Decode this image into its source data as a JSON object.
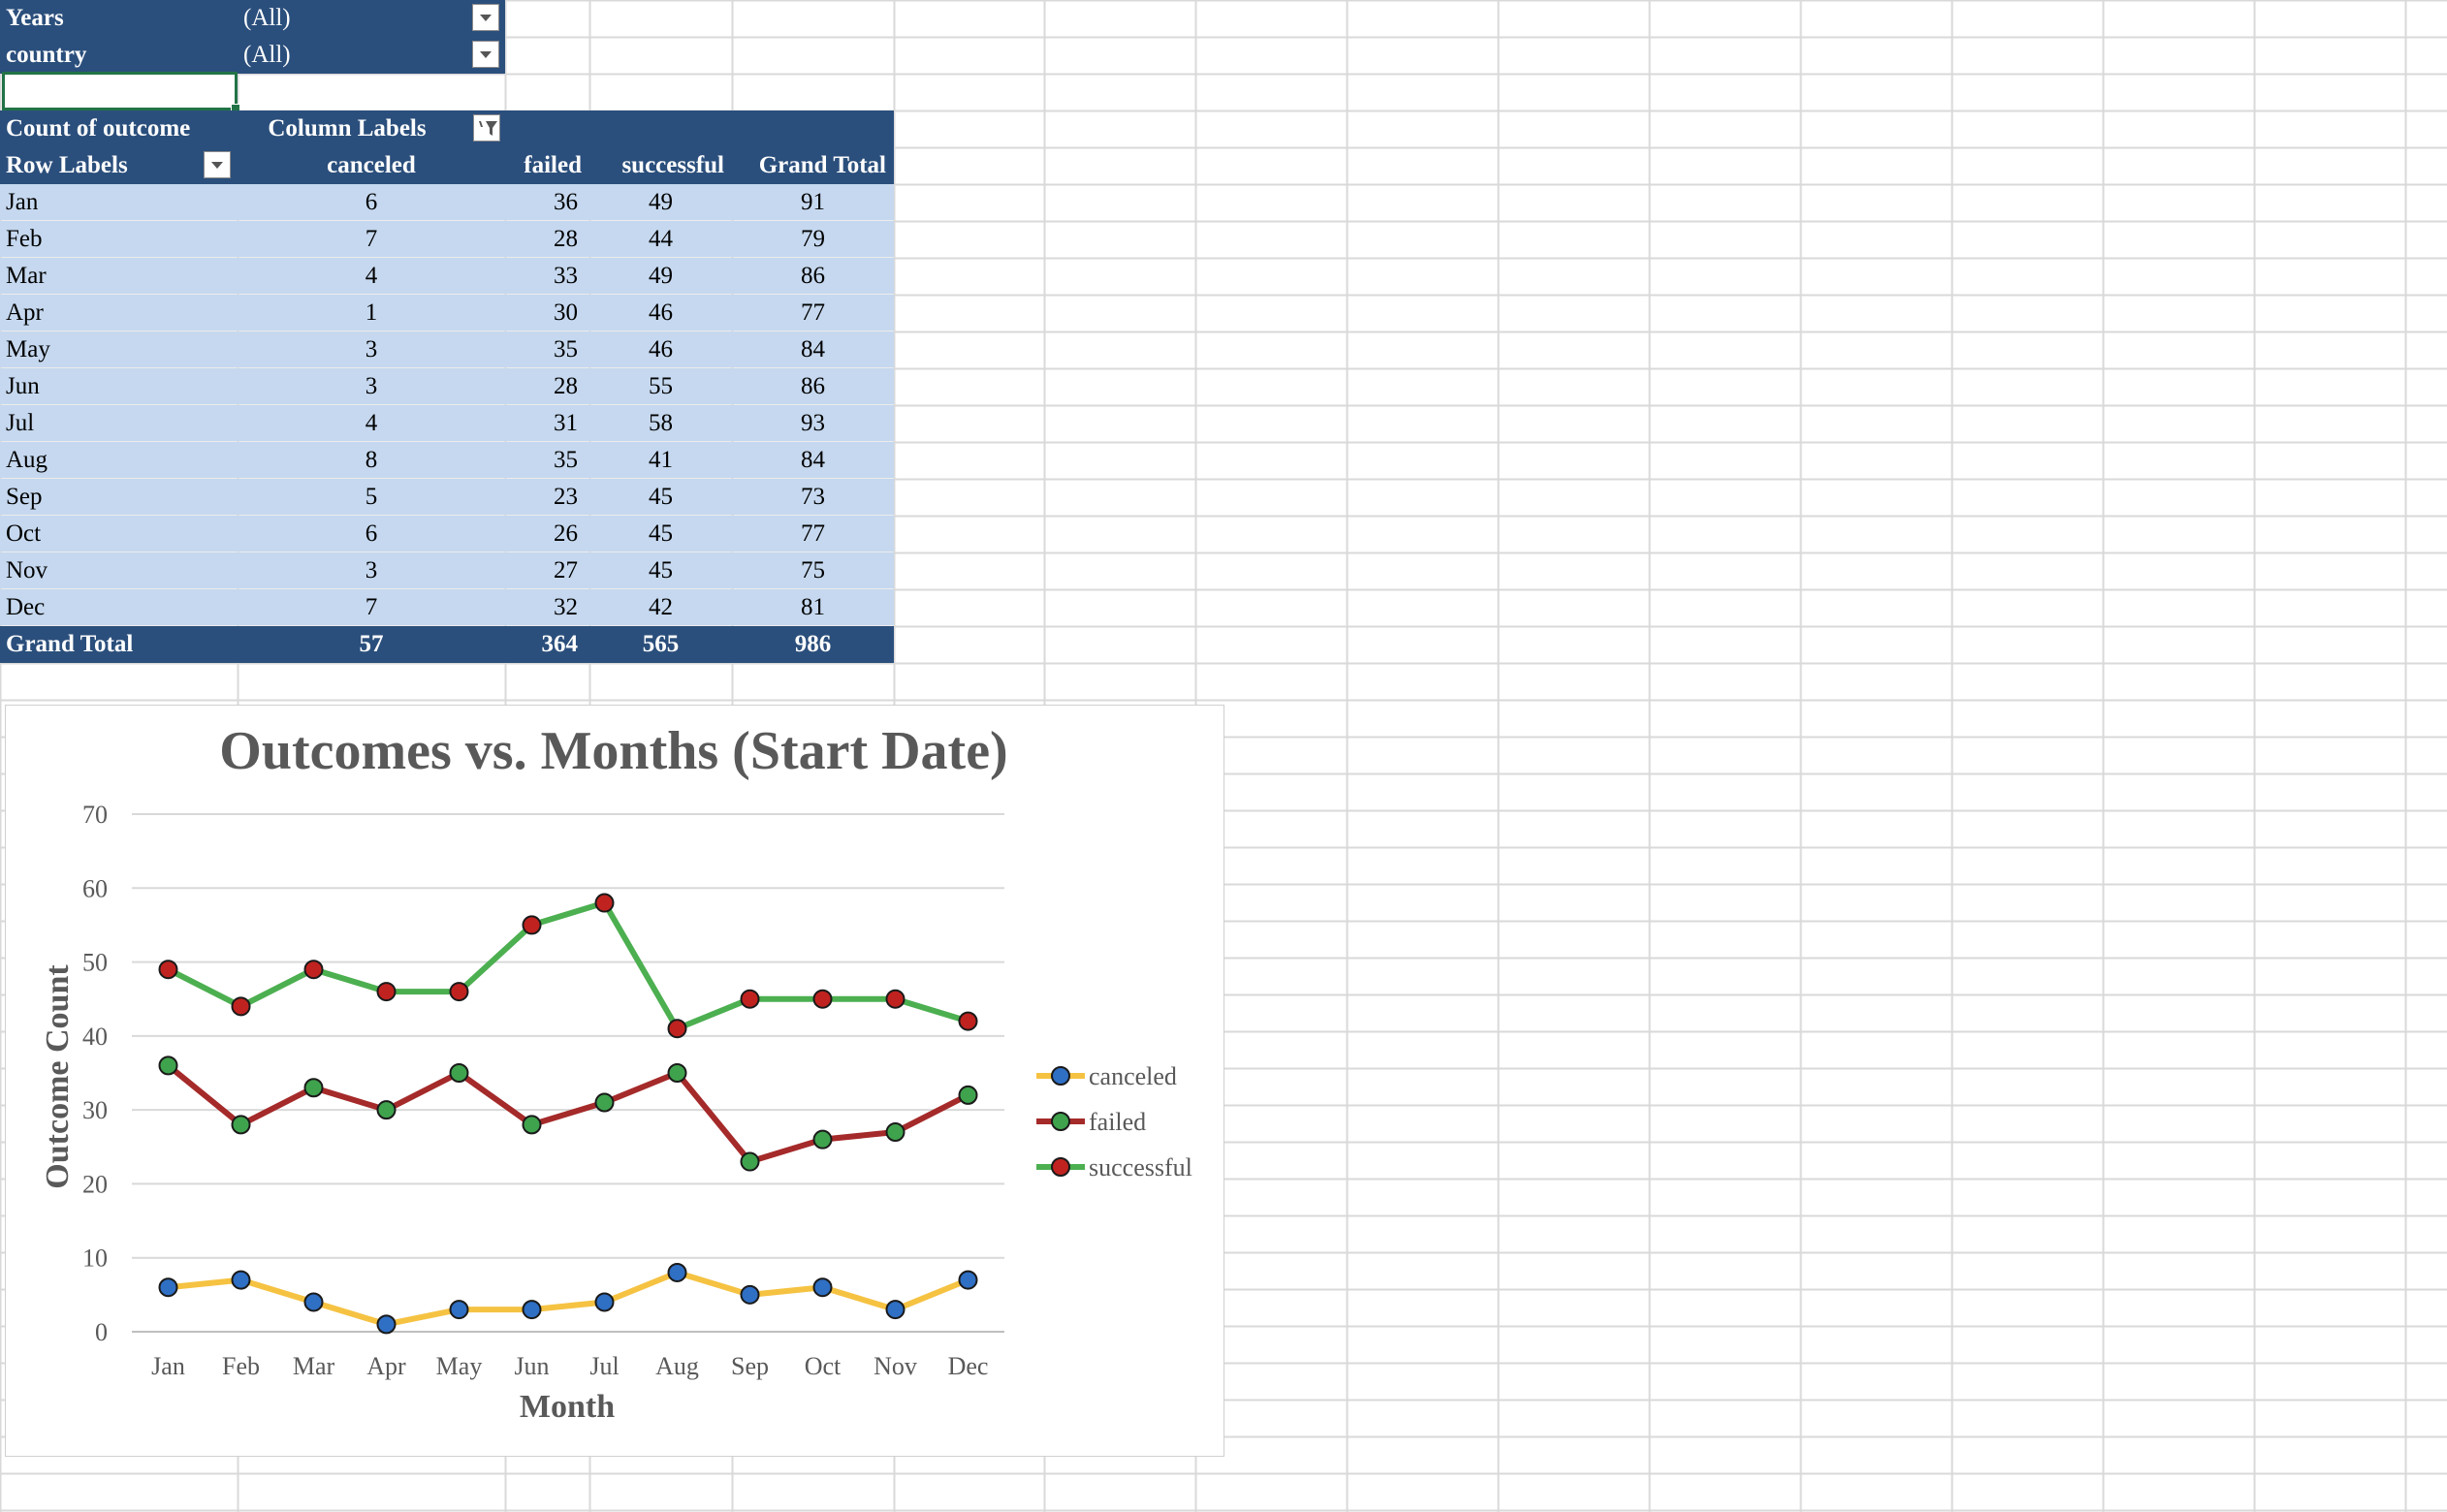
{
  "filters": [
    {
      "label": "Years",
      "value": "(All)"
    },
    {
      "label": "country",
      "value": "(All)"
    }
  ],
  "pivot": {
    "value_field": "Count of outcome",
    "column_labels": "Column Labels",
    "row_labels": "Row Labels",
    "columns": [
      "canceled",
      "failed",
      "successful",
      "Grand Total"
    ],
    "rows": [
      {
        "label": "Jan",
        "values": [
          "6",
          "36",
          "49",
          "91"
        ]
      },
      {
        "label": "Feb",
        "values": [
          "7",
          "28",
          "44",
          "79"
        ]
      },
      {
        "label": "Mar",
        "values": [
          "4",
          "33",
          "49",
          "86"
        ]
      },
      {
        "label": "Apr",
        "values": [
          "1",
          "30",
          "46",
          "77"
        ]
      },
      {
        "label": "May",
        "values": [
          "3",
          "35",
          "46",
          "84"
        ]
      },
      {
        "label": "Jun",
        "values": [
          "3",
          "28",
          "55",
          "86"
        ]
      },
      {
        "label": "Jul",
        "values": [
          "4",
          "31",
          "58",
          "93"
        ]
      },
      {
        "label": "Aug",
        "values": [
          "8",
          "35",
          "41",
          "84"
        ]
      },
      {
        "label": "Sep",
        "values": [
          "5",
          "23",
          "45",
          "73"
        ]
      },
      {
        "label": "Oct",
        "values": [
          "6",
          "26",
          "45",
          "77"
        ]
      },
      {
        "label": "Nov",
        "values": [
          "3",
          "27",
          "45",
          "75"
        ]
      },
      {
        "label": "Dec",
        "values": [
          "7",
          "32",
          "42",
          "81"
        ]
      }
    ],
    "grand_total": {
      "label": "Grand Total",
      "values": [
        "57",
        "364",
        "565",
        "986"
      ]
    }
  },
  "chart_data": {
    "type": "line",
    "title": "Outcomes vs. Months (Start Date)",
    "xlabel": "Month",
    "ylabel": "Outcome Count",
    "categories": [
      "Jan",
      "Feb",
      "Mar",
      "Apr",
      "May",
      "Jun",
      "Jul",
      "Aug",
      "Sep",
      "Oct",
      "Nov",
      "Dec"
    ],
    "ylim": [
      0,
      70
    ],
    "yticks": [
      "0",
      "10",
      "20",
      "30",
      "40",
      "50",
      "60",
      "70"
    ],
    "grid": "horizontal",
    "legend": "right",
    "series": [
      {
        "name": "canceled",
        "values": [
          6,
          7,
          4,
          1,
          3,
          3,
          4,
          8,
          5,
          6,
          3,
          7
        ],
        "line_color": "#f5c242",
        "marker_color": "#2f6fc4"
      },
      {
        "name": "failed",
        "values": [
          36,
          28,
          33,
          30,
          35,
          28,
          31,
          35,
          23,
          26,
          27,
          32
        ],
        "line_color": "#a52a2a",
        "marker_color": "#3fa34d"
      },
      {
        "name": "successful",
        "values": [
          49,
          44,
          49,
          46,
          46,
          55,
          58,
          41,
          45,
          45,
          45,
          42
        ],
        "line_color": "#4caf50",
        "marker_color": "#c0231f"
      }
    ]
  },
  "colors": {
    "pivot_header": "#2b4f7c",
    "pivot_body": "#c5d8ef",
    "gridline": "#d9d9d9",
    "selection": "#217346"
  }
}
